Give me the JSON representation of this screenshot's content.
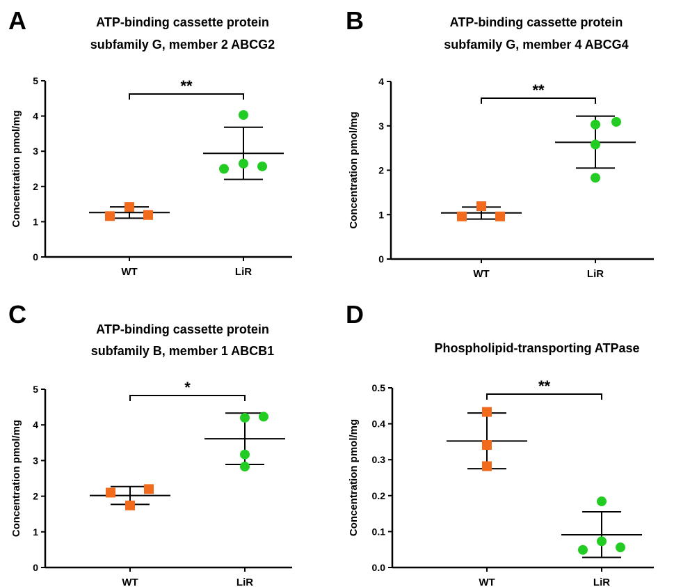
{
  "chart_data": [
    {
      "type": "scatter",
      "panel_label": "A",
      "title_lines": [
        "ATP-binding cassette protein",
        "subfamily G, member 2   ABCG2"
      ],
      "ylabel": "Concentration pmol/mg",
      "ylim": [
        0,
        5
      ],
      "yticks": [
        "0",
        "1",
        "2",
        "3",
        "4",
        "5"
      ],
      "categories": [
        "WT",
        "LiR"
      ],
      "significance": "**",
      "series": [
        {
          "category": "WT",
          "marker": "square",
          "color": "#F26B1D",
          "points": [
            1.16,
            1.42,
            1.19
          ],
          "mean": 1.26,
          "sd_low": 1.1,
          "sd_high": 1.42
        },
        {
          "category": "LiR",
          "marker": "circle",
          "color": "#22CC22",
          "points": [
            4.03,
            2.5,
            2.65,
            2.57
          ],
          "mean": 2.94,
          "sd_low": 2.2,
          "sd_high": 3.68
        }
      ]
    },
    {
      "type": "scatter",
      "panel_label": "B",
      "title_lines": [
        "ATP-binding cassette protein",
        "subfamily G, member 4  ABCG4"
      ],
      "ylabel": "Concentration pmol/mg",
      "ylim": [
        0,
        4
      ],
      "yticks": [
        "0",
        "1",
        "2",
        "3",
        "4"
      ],
      "categories": [
        "WT",
        "LiR"
      ],
      "significance": "**",
      "series": [
        {
          "category": "WT",
          "marker": "square",
          "color": "#F26B1D",
          "points": [
            0.96,
            1.19,
            0.96
          ],
          "mean": 1.04,
          "sd_low": 0.9,
          "sd_high": 1.17
        },
        {
          "category": "LiR",
          "marker": "circle",
          "color": "#22CC22",
          "points": [
            3.03,
            2.58,
            1.83,
            3.09
          ],
          "mean": 2.63,
          "sd_low": 2.05,
          "sd_high": 3.22
        }
      ]
    },
    {
      "type": "scatter",
      "panel_label": "C",
      "title_lines": [
        "ATP-binding cassette protein",
        "subfamily B, member 1 ABCB1"
      ],
      "ylabel": "Concentration pmol/mg",
      "ylim": [
        0,
        5
      ],
      "yticks": [
        "0",
        "1",
        "2",
        "3",
        "4",
        "5"
      ],
      "categories": [
        "WT",
        "LiR"
      ],
      "significance": "*",
      "series": [
        {
          "category": "WT",
          "marker": "square",
          "color": "#F26B1D",
          "points": [
            2.1,
            1.74,
            2.2
          ],
          "mean": 2.02,
          "sd_low": 1.77,
          "sd_high": 2.27
        },
        {
          "category": "LiR",
          "marker": "circle",
          "color": "#22CC22",
          "points": [
            4.2,
            3.17,
            2.83,
            4.23
          ],
          "mean": 3.61,
          "sd_low": 2.89,
          "sd_high": 4.33
        }
      ]
    },
    {
      "type": "scatter",
      "panel_label": "D",
      "title_lines": [
        "Phospholipid-transporting ATPase"
      ],
      "ylabel": "Concentration pmol/mg",
      "ylim": [
        0,
        0.5
      ],
      "yticks": [
        "0.0",
        "0.1",
        "0.2",
        "0.3",
        "0.4",
        "0.5"
      ],
      "categories": [
        "WT",
        "LiR"
      ],
      "significance": "**",
      "series": [
        {
          "category": "WT",
          "marker": "square",
          "color": "#F26B1D",
          "points": [
            0.433,
            0.341,
            0.282
          ],
          "mean": 0.352,
          "sd_low": 0.275,
          "sd_high": 0.43
        },
        {
          "category": "LiR",
          "marker": "circle",
          "color": "#22CC22",
          "points": [
            0.184,
            0.073,
            0.049,
            0.056
          ],
          "mean": 0.091,
          "sd_low": 0.028,
          "sd_high": 0.155
        }
      ]
    }
  ]
}
